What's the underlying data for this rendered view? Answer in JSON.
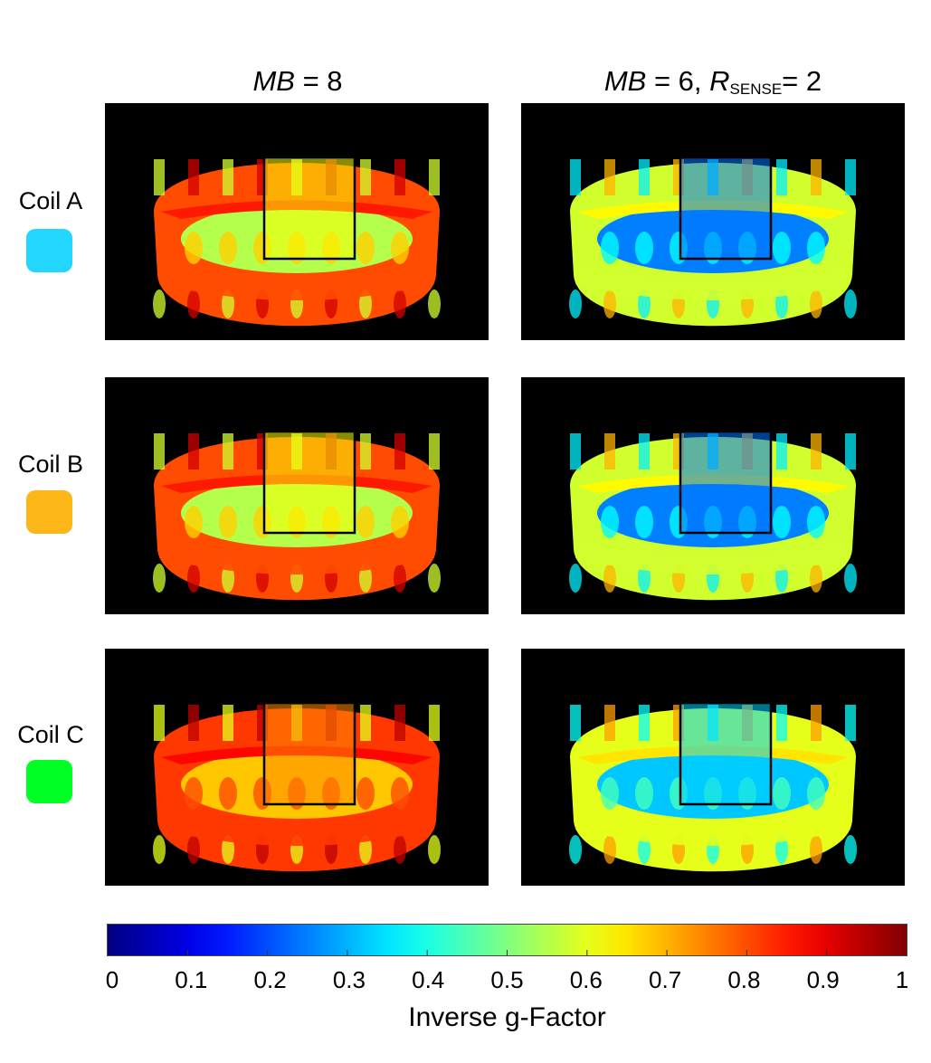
{
  "columns": [
    {
      "var": "MB",
      "eq": " = 8",
      "sense": "",
      "sub": "",
      "eq2": ""
    },
    {
      "var": "MB",
      "eq": " = 6, ",
      "sense": "R",
      "sub": "SENSE",
      "eq2": "= 2"
    }
  ],
  "rows": [
    {
      "label": "Coil A",
      "color": "#22d6ff"
    },
    {
      "label": "Coil B",
      "color": "#fdb617"
    },
    {
      "label": "Coil C",
      "color": "#00ff24"
    }
  ],
  "panels": [
    [
      {
        "outer": 0.8,
        "inner": 0.55,
        "roi": 0.62
      },
      {
        "outer": 0.58,
        "inner": 0.25,
        "roi": 0.24
      }
    ],
    [
      {
        "outer": 0.8,
        "inner": 0.55,
        "roi": 0.62
      },
      {
        "outer": 0.58,
        "inner": 0.25,
        "roi": 0.24
      }
    ],
    [
      {
        "outer": 0.82,
        "inner": 0.68,
        "roi": 0.74
      },
      {
        "outer": 0.6,
        "inner": 0.32,
        "roi": 0.33
      }
    ]
  ],
  "colorbar": {
    "label": "Inverse g-Factor",
    "range": [
      0,
      1
    ],
    "colormap": "jet",
    "ticks": [
      "0",
      "0.1",
      "0.2",
      "0.3",
      "0.4",
      "0.5",
      "0.6",
      "0.7",
      "0.8",
      "0.9",
      "1"
    ]
  }
}
